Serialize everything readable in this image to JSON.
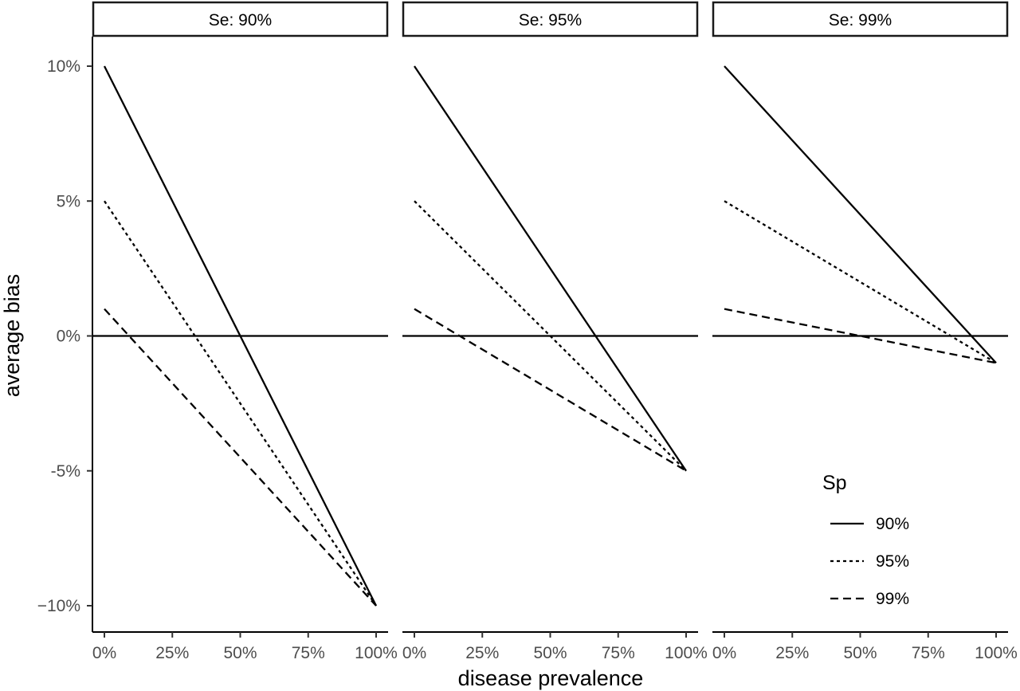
{
  "chart_data": {
    "type": "line",
    "xlabel": "disease prevalence",
    "ylabel": "average bias",
    "x_ticks": [
      0,
      25,
      50,
      75,
      100
    ],
    "x_tick_labels": [
      "0%",
      "25%",
      "50%",
      "75%",
      "100%"
    ],
    "y_ticks": [
      -10,
      -5,
      0,
      5,
      10
    ],
    "y_tick_labels": [
      "−10%",
      "-5%",
      "0%",
      "5%",
      "10%"
    ],
    "xlim": [
      0,
      100
    ],
    "ylim": [
      -10,
      10
    ],
    "reference_line_y": 0,
    "grid": false,
    "legend": {
      "title": "Sp",
      "placement": "bottom-right",
      "entries": [
        {
          "label": "90%",
          "dash": "solid"
        },
        {
          "label": "95%",
          "dash": "dotted"
        },
        {
          "label": "99%",
          "dash": "dashed"
        }
      ]
    },
    "panels": [
      {
        "strip": "Se: 90%",
        "series": [
          {
            "name": "90%",
            "x": [
              0,
              100
            ],
            "y": [
              10,
              -10
            ]
          },
          {
            "name": "95%",
            "x": [
              0,
              100
            ],
            "y": [
              5,
              -10
            ]
          },
          {
            "name": "99%",
            "x": [
              0,
              100
            ],
            "y": [
              1,
              -10
            ]
          }
        ]
      },
      {
        "strip": "Se: 95%",
        "series": [
          {
            "name": "90%",
            "x": [
              0,
              100
            ],
            "y": [
              10,
              -5
            ]
          },
          {
            "name": "95%",
            "x": [
              0,
              100
            ],
            "y": [
              5,
              -5
            ]
          },
          {
            "name": "99%",
            "x": [
              0,
              100
            ],
            "y": [
              1,
              -5
            ]
          }
        ]
      },
      {
        "strip": "Se: 99%",
        "series": [
          {
            "name": "90%",
            "x": [
              0,
              100
            ],
            "y": [
              10,
              -1
            ]
          },
          {
            "name": "95%",
            "x": [
              0,
              100
            ],
            "y": [
              5,
              -1
            ]
          },
          {
            "name": "99%",
            "x": [
              0,
              100
            ],
            "y": [
              1,
              -1
            ]
          }
        ]
      }
    ]
  }
}
